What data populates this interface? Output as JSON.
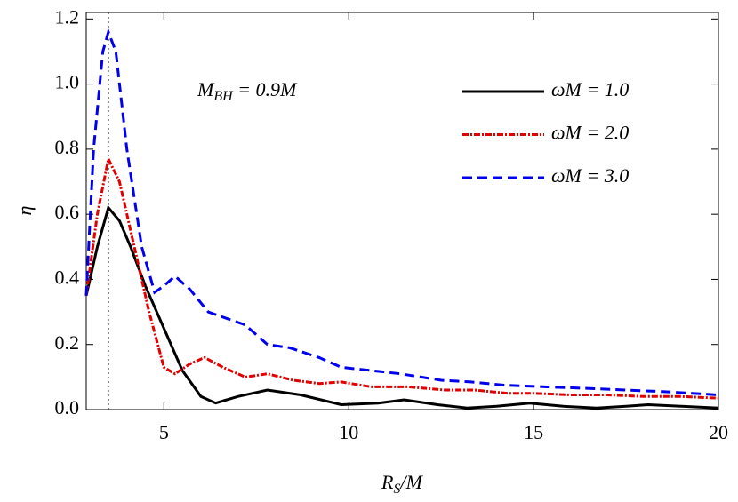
{
  "chart_data": {
    "type": "line",
    "xlabel": {
      "text": "R",
      "sub": "S",
      "rest": "/M"
    },
    "ylabel": "η",
    "annotation": {
      "text": "M",
      "sub": "BH",
      "rest": " = 0.9M"
    },
    "vline": 3.5,
    "xlim": [
      2.9,
      20
    ],
    "ylim": [
      0,
      1.22
    ],
    "xticks": [
      5,
      10,
      15,
      20
    ],
    "yticks": [
      {
        "value": 0,
        "label": "0.0"
      },
      {
        "value": 0.2,
        "label": "0.2"
      },
      {
        "value": 0.4,
        "label": "0.4"
      },
      {
        "value": 0.6,
        "label": "0.6"
      },
      {
        "value": 0.8,
        "label": "0.8"
      },
      {
        "value": 1,
        "label": "1.0"
      },
      {
        "value": 1.2,
        "label": "1.2"
      }
    ],
    "legend": "upper right",
    "series": [
      {
        "name": "ωM = 1.0",
        "color": "#000000",
        "dash": "solid",
        "x": [
          2.9,
          3.2,
          3.5,
          3.8,
          4.1,
          4.5,
          5,
          5.5,
          6,
          6.4,
          7,
          7.8,
          8.7,
          9.8,
          10.8,
          11.5,
          12.4,
          13.2,
          14,
          14.9,
          15.8,
          16.7,
          17.5,
          18.1,
          19,
          20
        ],
        "values": [
          0.35,
          0.5,
          0.62,
          0.58,
          0.5,
          0.38,
          0.25,
          0.12,
          0.04,
          0.02,
          0.04,
          0.06,
          0.045,
          0.015,
          0.02,
          0.03,
          0.015,
          0.005,
          0.01,
          0.02,
          0.01,
          0.005,
          0.01,
          0.015,
          0.01,
          0.005
        ]
      },
      {
        "name": "ωM = 2.0",
        "color": "#e00000",
        "dash": "dashdot",
        "x": [
          2.9,
          3.2,
          3.5,
          3.8,
          4.1,
          4.6,
          5,
          5.3,
          5.7,
          6.1,
          6.6,
          7.2,
          7.8,
          8.5,
          9.2,
          9.8,
          10.6,
          11.6,
          12.6,
          13.4,
          14.3,
          15,
          16,
          17,
          18,
          19,
          20
        ],
        "values": [
          0.35,
          0.6,
          0.77,
          0.7,
          0.55,
          0.3,
          0.13,
          0.11,
          0.14,
          0.16,
          0.13,
          0.1,
          0.11,
          0.09,
          0.08,
          0.085,
          0.07,
          0.07,
          0.06,
          0.06,
          0.05,
          0.05,
          0.045,
          0.045,
          0.04,
          0.04,
          0.035
        ]
      },
      {
        "name": "ωM = 3.0",
        "color": "#0000ee",
        "dash": "dashed",
        "x": [
          2.9,
          3.1,
          3.35,
          3.5,
          3.7,
          4,
          4.4,
          4.75,
          5,
          5.3,
          5.7,
          6.2,
          6.7,
          7.2,
          7.8,
          8.4,
          9.2,
          9.8,
          10.6,
          11.4,
          12.5,
          13.3,
          14.2,
          15.3,
          16.5,
          17.5,
          18.5,
          19.3,
          20
        ],
        "values": [
          0.35,
          0.8,
          1.1,
          1.16,
          1.1,
          0.8,
          0.5,
          0.36,
          0.38,
          0.41,
          0.37,
          0.3,
          0.28,
          0.26,
          0.2,
          0.19,
          0.16,
          0.13,
          0.12,
          0.11,
          0.09,
          0.085,
          0.075,
          0.07,
          0.065,
          0.06,
          0.055,
          0.05,
          0.045
        ]
      }
    ]
  }
}
